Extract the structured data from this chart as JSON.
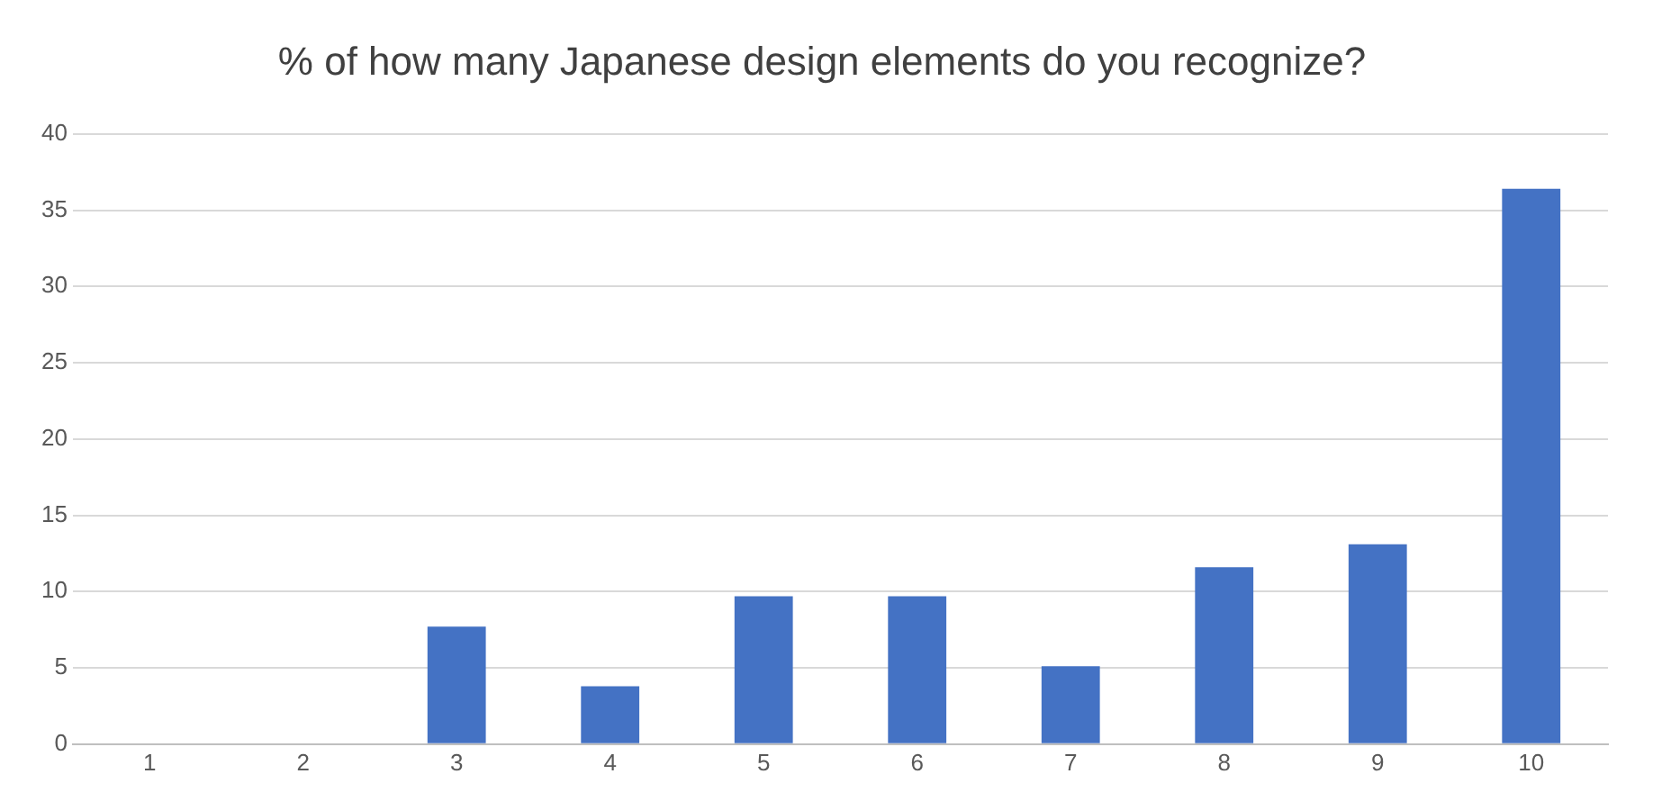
{
  "chart_data": {
    "type": "bar",
    "title": "% of how many Japanese design elements do you recognize?",
    "categories": [
      "1",
      "2",
      "3",
      "4",
      "5",
      "6",
      "7",
      "8",
      "9",
      "10"
    ],
    "values": [
      0,
      0,
      7.7,
      3.8,
      9.7,
      9.7,
      5.1,
      11.6,
      13.1,
      36.4
    ],
    "color": "#4472c4",
    "ylim": [
      0,
      40
    ],
    "yticks": [
      0,
      5,
      10,
      15,
      20,
      25,
      30,
      35,
      40
    ],
    "grid": "y",
    "legend": false
  }
}
